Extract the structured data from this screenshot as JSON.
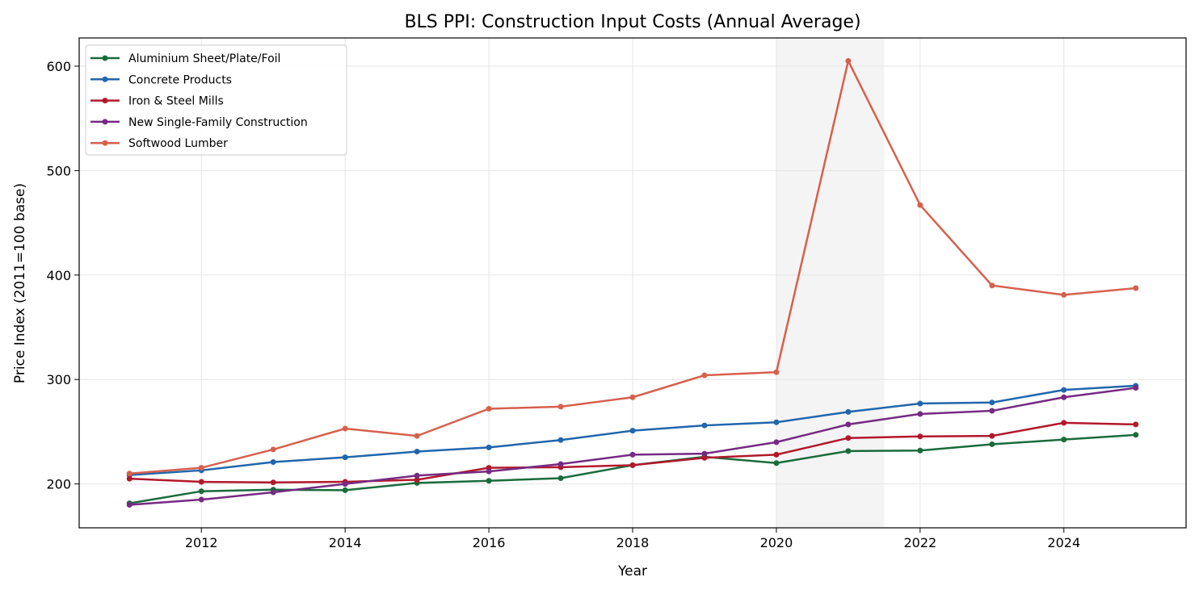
{
  "chart_data": {
    "type": "line",
    "title": "BLS PPI: Construction Input Costs (Annual Average)",
    "xlabel": "Year",
    "ylabel": "Price Index (2011=100 base)",
    "xlim": [
      2010.3,
      2025.7
    ],
    "ylim": [
      158,
      627
    ],
    "xticks": [
      2012,
      2014,
      2016,
      2018,
      2020,
      2022,
      2024
    ],
    "yticks": [
      200,
      300,
      400,
      500,
      600
    ],
    "grid": true,
    "legend_position": "top-left",
    "shaded_region": {
      "from": 2020,
      "to": 2021.5,
      "color": "#f4f4f4"
    },
    "x": [
      2011,
      2012,
      2013,
      2014,
      2015,
      2016,
      2017,
      2018,
      2019,
      2020,
      2021,
      2022,
      2023,
      2024,
      2025
    ],
    "series": [
      {
        "name": "Aluminium Sheet/Plate/Foil",
        "color": "#1a6b3c",
        "values": [
          181.5,
          193,
          194.5,
          194,
          201,
          203,
          205.5,
          218,
          226,
          220,
          231.5,
          232,
          238,
          242.5,
          247
        ]
      },
      {
        "name": "Concrete Products",
        "color": "#2166ac",
        "values": [
          208.5,
          213,
          221,
          225.5,
          231,
          235,
          242,
          251,
          256,
          259,
          269,
          277,
          278,
          290,
          294
        ]
      },
      {
        "name": "Iron & Steel Mills",
        "color": "#b2182b",
        "values": [
          205,
          202,
          201.5,
          202,
          204,
          215.5,
          216,
          218,
          225,
          228,
          244,
          245.5,
          246,
          258.5,
          257
        ]
      },
      {
        "name": "New Single-Family Construction",
        "color": "#762a83",
        "values": [
          180,
          185,
          192,
          200,
          208,
          212,
          219,
          228,
          229,
          240,
          257,
          267,
          270,
          283,
          292
        ]
      },
      {
        "name": "Softwood Lumber",
        "color": "#d6604d",
        "values": [
          210,
          215.5,
          233,
          253,
          246,
          272,
          274,
          283,
          304,
          307,
          605,
          467,
          390,
          381,
          387.5
        ]
      }
    ]
  }
}
